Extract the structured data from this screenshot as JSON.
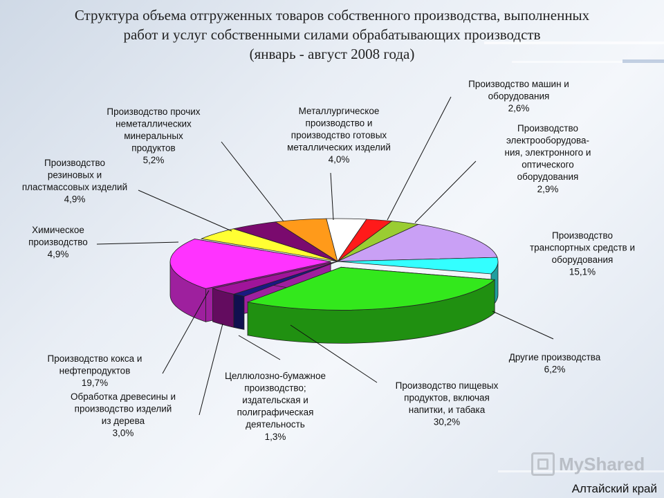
{
  "title_lines": [
    "Структура объема отгруженных товаров собственного производства, выполненных",
    "работ и услуг собственными силами обрабатывающих  производств",
    "(январь - август 2008 года)"
  ],
  "region": "Алтайский край",
  "watermark_text": "MyShared",
  "chart_data": {
    "type": "pie",
    "title": "Структура объема отгруженных товаров собственного производства, выполненных работ и услуг собственными силами обрабатывающих  производств (январь - август 2008 года)",
    "unit": "%",
    "slices": [
      {
        "label": "Металлургическое производство и производство готовых металлических изделий",
        "value": 4.0,
        "value_label": "4,0%",
        "color": "#ffffff"
      },
      {
        "label": "Производство машин и оборудования",
        "value": 2.6,
        "value_label": "2,6%",
        "color": "#ff1a1a"
      },
      {
        "label": "Производство электрооборудова-ния, электронного и оптического оборудования",
        "value": 2.9,
        "value_label": "2,9%",
        "color": "#9acd32"
      },
      {
        "label": "Производство транспортных средств и оборудования",
        "value": 15.1,
        "value_label": "15,1%",
        "color": "#c9a0f5"
      },
      {
        "label": "Другие производства",
        "value": 6.2,
        "value_label": "6,2%",
        "color": "#33ffff"
      },
      {
        "label": "Производство пищевых продуктов, включая напитки, и табака",
        "value": 30.2,
        "value_label": "30,2%",
        "color": "#33e81c"
      },
      {
        "label": "Целлюлозно-бумажное производство; издательская и полиграфическая деятельность",
        "value": 1.3,
        "value_label": "1,3%",
        "color": "#1a1a80"
      },
      {
        "label": "Обработка древесины и производство изделий из дерева",
        "value": 3.0,
        "value_label": "3,0%",
        "color": "#a0149a"
      },
      {
        "label": "Производство кокса и нефтепродуктов",
        "value": 19.7,
        "value_label": "19,7%",
        "color": "#ff33ff"
      },
      {
        "label": "Химическое производство",
        "value": 4.9,
        "value_label": "4,9%",
        "color": "#ffff33"
      },
      {
        "label": "Производство резиновых и пластмассовых изделий",
        "value": 4.9,
        "value_label": "4,9%",
        "color": "#7a0a6e"
      },
      {
        "label": "Производство прочих неметаллических минеральных продуктов",
        "value": 5.2,
        "value_label": "5,2%",
        "color": "#ff9a1a"
      }
    ],
    "extra_slice_color": "#1a5ad6",
    "labels_display": [
      {
        "lines": [
          "Металлургическое",
          "производство и",
          "производство готовых",
          "металлических изделий",
          "4,0%"
        ]
      },
      {
        "lines": [
          "Производство машин и",
          "оборудования",
          "2,6%"
        ]
      },
      {
        "lines": [
          "Производство",
          "электрооборудова-",
          "ния, электронного и",
          "оптического",
          "оборудования",
          "2,9%"
        ]
      },
      {
        "lines": [
          "Производство",
          "транспортных средств и",
          "оборудования",
          "15,1%"
        ]
      },
      {
        "lines": [
          "Другие производства",
          "6,2%"
        ]
      },
      {
        "lines": [
          "Производство пищевых",
          "продуктов, включая",
          "напитки, и табака",
          "30,2%"
        ]
      },
      {
        "lines": [
          "Целлюлозно-бумажное",
          "производство;",
          "издательская и",
          "полиграфическая",
          "деятельность",
          "1,3%"
        ]
      },
      {
        "lines": [
          "Обработка древесины и",
          "производство изделий",
          "из дерева",
          "3,0%"
        ]
      },
      {
        "lines": [
          "Производство кокса и",
          "нефтепродуктов",
          "19,7%"
        ]
      },
      {
        "lines": [
          "Химическое",
          "производство",
          "4,9%"
        ]
      },
      {
        "lines": [
          "Производство",
          "резиновых и",
          "пластмассовых изделий",
          "4,9%"
        ]
      },
      {
        "lines": [
          "Производство прочих",
          "неметаллических",
          "минеральных",
          "продуктов",
          "5,2%"
        ]
      }
    ]
  }
}
